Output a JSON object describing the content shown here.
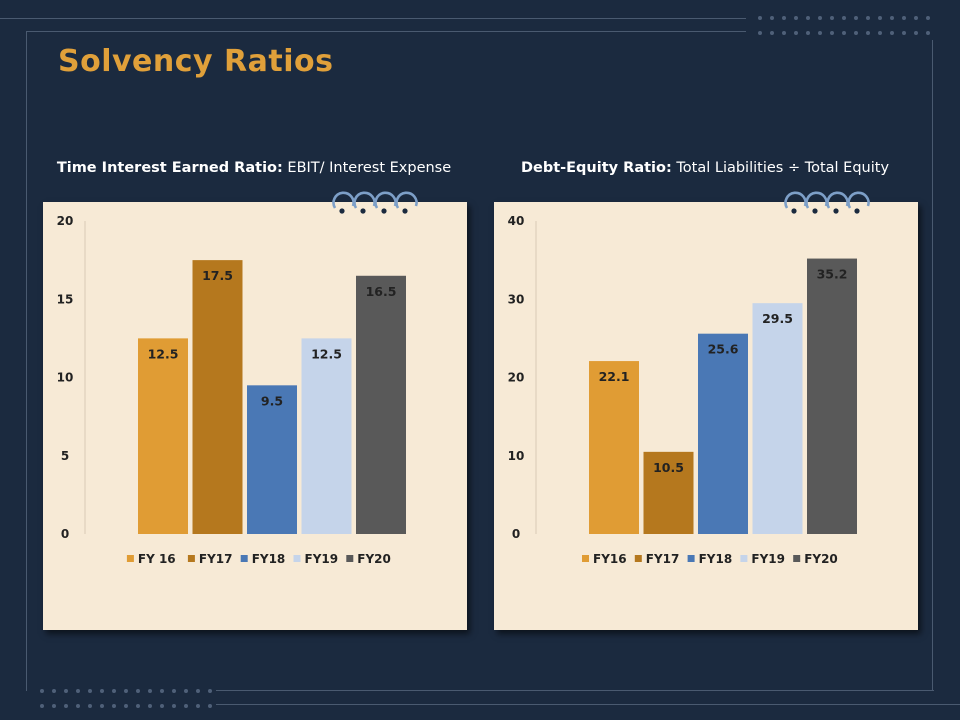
{
  "page": {
    "title": "Solvency Ratios",
    "colors": {
      "background": "#1b2a3f",
      "title": "#e0a03a",
      "panel": "#f7ead6",
      "ring": "#7d9fc8"
    }
  },
  "charts": [
    {
      "heading_bold": "Time Interest Earned Ratio:",
      "heading_rest": " EBIT/ Interest Expense"
    },
    {
      "heading_bold": "Debt-Equity Ratio:",
      "heading_rest": " Total Liabilities ÷ Total Equity"
    }
  ],
  "chart_data": [
    {
      "type": "bar",
      "title": "Time Interest Earned Ratio: EBIT/ Interest Expense",
      "series": [
        {
          "name": "FY 16",
          "values": [
            12.5
          ],
          "color": "#e09c34"
        },
        {
          "name": "FY17",
          "values": [
            17.5
          ],
          "color": "#b5781e"
        },
        {
          "name": "FY18",
          "values": [
            9.5
          ],
          "color": "#4a78b5"
        },
        {
          "name": "FY19",
          "values": [
            12.5
          ],
          "color": "#c5d4ea"
        },
        {
          "name": "FY20",
          "values": [
            16.5
          ],
          "color": "#595959"
        }
      ],
      "data_labels": [
        "12.5",
        "17.5",
        "9.5",
        "12.5",
        "16.5"
      ],
      "ylim": [
        0,
        20
      ],
      "yticks": [
        "0",
        "5",
        "10",
        "15",
        "20"
      ],
      "xlabel": "",
      "ylabel": "",
      "grid": false,
      "legend": "bottom"
    },
    {
      "type": "bar",
      "title": "Debt-Equity Ratio: Total Liabilities ÷ Total Equity",
      "series": [
        {
          "name": "FY16",
          "values": [
            22.1
          ],
          "color": "#e09c34"
        },
        {
          "name": "FY17",
          "values": [
            10.5
          ],
          "color": "#b5781e"
        },
        {
          "name": "FY18",
          "values": [
            25.6
          ],
          "color": "#4a78b5"
        },
        {
          "name": "FY19",
          "values": [
            29.5
          ],
          "color": "#c5d4ea"
        },
        {
          "name": "FY20",
          "values": [
            35.2
          ],
          "color": "#595959"
        }
      ],
      "data_labels": [
        "22.1",
        "10.5",
        "25.6",
        "29.5",
        "35.2"
      ],
      "ylim": [
        0,
        40
      ],
      "yticks": [
        "0",
        "10",
        "20",
        "30",
        "40"
      ],
      "xlabel": "",
      "ylabel": "",
      "grid": false,
      "legend": "bottom"
    }
  ]
}
